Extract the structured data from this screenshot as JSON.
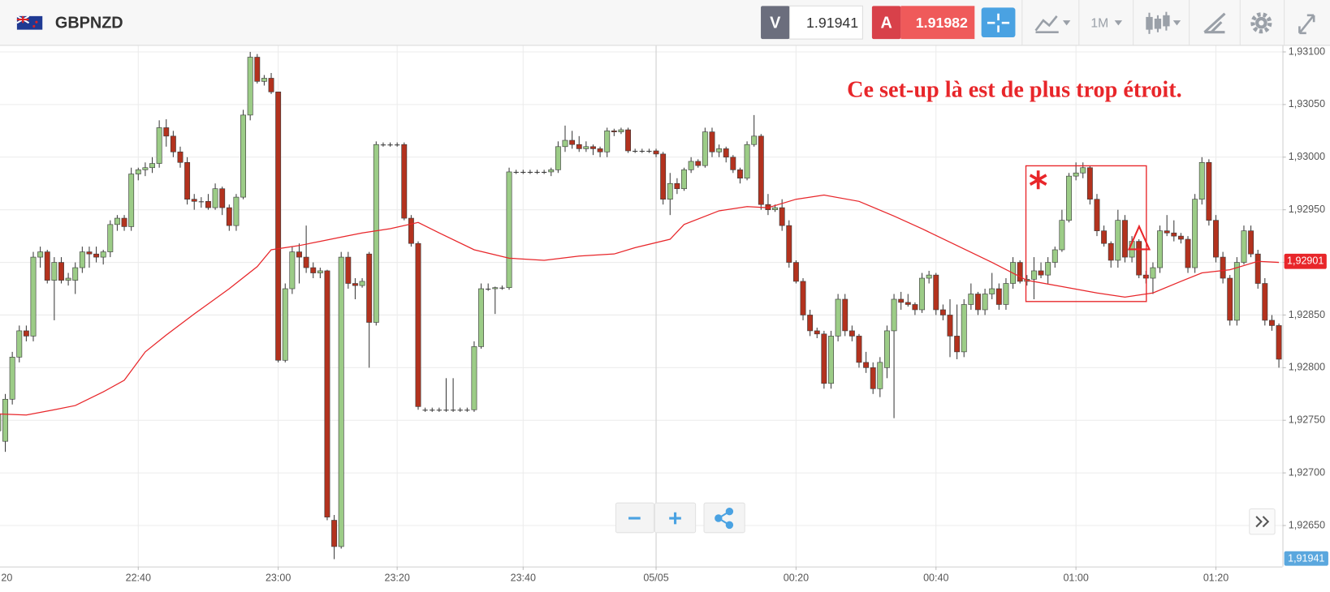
{
  "toolbar": {
    "symbol": "GBPNZD",
    "bid_label": "V",
    "bid": 1.91941,
    "ask_label": "A",
    "ask": 1.91982,
    "timeframe": "1M"
  },
  "chart_data": {
    "type": "candlestick",
    "categories": [
      "20",
      null,
      null,
      null,
      null,
      null,
      null,
      null,
      null,
      null,
      null,
      null,
      null,
      null,
      null,
      null,
      null,
      null,
      null,
      null,
      "22:40",
      null,
      null,
      null,
      null,
      null,
      null,
      null,
      null,
      null,
      null,
      null,
      null,
      null,
      null,
      null,
      null,
      null,
      null,
      null,
      "23:00",
      null,
      null,
      null,
      null,
      null,
      null,
      null,
      null,
      null,
      null,
      null,
      null,
      null,
      null,
      null,
      null,
      "23:20",
      null,
      null,
      null,
      null,
      null,
      null,
      null,
      null,
      null,
      null,
      null,
      null,
      null,
      null,
      null,
      null,
      null,
      "23:40",
      null,
      null,
      null,
      null,
      null,
      null,
      null,
      null,
      null,
      null,
      null,
      null,
      null,
      null,
      null,
      null,
      null,
      null,
      "05/05",
      null,
      null,
      null,
      null,
      null,
      null,
      null,
      null,
      null,
      null,
      null,
      null,
      null,
      null,
      null,
      null,
      null,
      null,
      null,
      "00:20",
      null,
      null,
      null,
      null,
      null,
      null,
      null,
      null,
      null,
      null,
      null,
      null,
      null,
      null,
      null,
      null,
      null,
      null,
      null,
      "00:40",
      null,
      null,
      null,
      null,
      null,
      null,
      null,
      null,
      null,
      null,
      null,
      null,
      null,
      null,
      null,
      null,
      null,
      null,
      null,
      "01:00",
      null,
      null,
      null,
      null,
      null,
      null,
      null,
      null,
      null,
      null,
      null,
      null,
      null,
      null,
      null,
      null,
      null,
      null,
      null,
      "01:20",
      null,
      null,
      null,
      null,
      null,
      null,
      null,
      null,
      null
    ],
    "open": [
      1.9274,
      1.9273,
      1.9277,
      1.9281,
      1.92835,
      1.9283,
      1.92905,
      1.9291,
      1.92883,
      1.929,
      1.92883,
      1.92883,
      1.92895,
      1.9291,
      1.92908,
      1.92905,
      1.9291,
      1.92936,
      1.92942,
      1.92934,
      1.92984,
      1.92988,
      1.9299,
      1.92994,
      1.93028,
      1.9302,
      1.93005,
      1.92995,
      1.9296,
      1.92958,
      1.92958,
      1.92952,
      1.9297,
      1.92952,
      1.92935,
      1.92962,
      1.9304,
      1.93095,
      1.93072,
      1.93075,
      1.93062,
      1.92807,
      1.92875,
      1.9291,
      1.92905,
      1.92895,
      1.9289,
      1.92892,
      1.92655,
      1.9263,
      1.92905,
      1.9288,
      1.92878,
      1.92908,
      1.92843,
      1.93012,
      1.93012,
      1.93012,
      1.93012,
      1.92942,
      1.92918,
      1.9276,
      1.9276,
      1.9276,
      1.9276,
      1.9276,
      1.9276,
      1.9276,
      1.9276,
      1.9282,
      1.92875,
      1.92875,
      1.92876,
      1.92876,
      1.92986,
      1.92986,
      1.92986,
      1.92986,
      1.92986,
      1.92986,
      1.92988,
      1.9301,
      1.93016,
      1.93012,
      1.93008,
      1.9301,
      1.93008,
      1.93005,
      1.93025,
      1.93024,
      1.93026,
      1.93006,
      1.93006,
      1.93006,
      1.93006,
      1.93003,
      1.9296,
      1.92975,
      1.9297,
      1.92988,
      1.92996,
      1.92992,
      1.93024,
      1.93005,
      1.93008,
      1.93,
      1.92988,
      1.9298,
      1.93012,
      1.9302,
      1.92955,
      1.9295,
      1.92952,
      1.92935,
      1.929,
      1.92882,
      1.9285,
      1.92835,
      1.92832,
      1.92785,
      1.9283,
      1.92865,
      1.92835,
      1.9283,
      1.92805,
      1.928,
      1.9278,
      1.928,
      1.92835,
      1.92865,
      1.92862,
      1.9286,
      1.92855,
      1.92885,
      1.92888,
      1.92855,
      1.9285,
      1.9283,
      1.92815,
      1.9286,
      1.9287,
      1.92855,
      1.9287,
      1.92875,
      1.9286,
      1.9288,
      1.929,
      1.92882,
      1.92884,
      1.92892,
      1.92888,
      1.929,
      1.92912,
      1.9294,
      1.92982,
      1.92985,
      1.9299,
      1.9296,
      1.9293,
      1.92918,
      1.92902,
      1.9294,
      1.92905,
      1.9292,
      1.92888,
      1.92885,
      1.92895,
      1.9293,
      1.92928,
      1.92925,
      1.92922,
      1.92895,
      1.9296,
      1.92995,
      1.9294,
      1.92905,
      1.92885,
      1.92845,
      1.929,
      1.9293,
      1.92908,
      1.9288,
      1.92845,
      1.9284
    ],
    "high": [
      1.9276,
      1.92775,
      1.92815,
      1.9284,
      1.9284,
      1.9291,
      1.92915,
      1.92912,
      1.92905,
      1.92905,
      1.9289,
      1.929,
      1.92915,
      1.92915,
      1.92915,
      1.92912,
      1.9294,
      1.92945,
      1.92945,
      1.9299,
      1.9299,
      1.92995,
      1.93,
      1.93035,
      1.93036,
      1.93025,
      1.9301,
      1.93,
      1.92965,
      1.92962,
      1.92965,
      1.92975,
      1.92972,
      1.92955,
      1.92965,
      1.93045,
      1.931,
      1.93098,
      1.93078,
      1.9308,
      1.93062,
      1.9288,
      1.92915,
      1.92918,
      1.92935,
      1.929,
      1.92895,
      1.92893,
      1.9266,
      1.9291,
      1.9291,
      1.92885,
      1.92885,
      1.9291,
      1.93015,
      1.93014,
      1.93014,
      1.93014,
      1.93014,
      1.92945,
      1.9292,
      1.92762,
      1.92762,
      1.92762,
      1.9279,
      1.9279,
      1.92762,
      1.92762,
      1.92825,
      1.9288,
      1.9288,
      1.92877,
      1.92878,
      1.9299,
      1.92988,
      1.92988,
      1.92988,
      1.92988,
      1.92988,
      1.9299,
      1.93015,
      1.9303,
      1.93025,
      1.9302,
      1.93015,
      1.93012,
      1.9301,
      1.93028,
      1.93027,
      1.93028,
      1.93028,
      1.93008,
      1.93008,
      1.93008,
      1.93008,
      1.93005,
      1.92985,
      1.9298,
      1.9299,
      1.93,
      1.92998,
      1.93028,
      1.93028,
      1.93012,
      1.9301,
      1.93002,
      1.9299,
      1.93015,
      1.9304,
      1.93022,
      1.92965,
      1.92955,
      1.9296,
      1.9294,
      1.92902,
      1.92885,
      1.92855,
      1.92838,
      1.92835,
      1.92835,
      1.9287,
      1.9287,
      1.9284,
      1.92832,
      1.92815,
      1.92805,
      1.9281,
      1.9284,
      1.9287,
      1.92872,
      1.9287,
      1.92862,
      1.9289,
      1.92892,
      1.9289,
      1.9286,
      1.92865,
      1.9286,
      1.92865,
      1.9288,
      1.92872,
      1.92875,
      1.9289,
      1.9288,
      1.92885,
      1.92905,
      1.92902,
      1.92888,
      1.92905,
      1.929,
      1.92905,
      1.92915,
      1.9295,
      1.92985,
      1.92995,
      1.92995,
      1.92992,
      1.92965,
      1.92935,
      1.9292,
      1.9295,
      1.92945,
      1.92925,
      1.92922,
      1.92892,
      1.929,
      1.92935,
      1.92945,
      1.9294,
      1.92928,
      1.92925,
      1.92965,
      1.93,
      1.92998,
      1.92945,
      1.9291,
      1.92888,
      1.92905,
      1.92935,
      1.92935,
      1.92912,
      1.92885,
      1.9285,
      1.92842
    ],
    "low": [
      1.9273,
      1.9272,
      1.92765,
      1.92805,
      1.92825,
      1.92825,
      1.92895,
      1.9288,
      1.92845,
      1.9288,
      1.92878,
      1.9287,
      1.9289,
      1.92895,
      1.929,
      1.92898,
      1.92905,
      1.9293,
      1.9293,
      1.9293,
      1.92978,
      1.92982,
      1.92985,
      1.9299,
      1.9301,
      1.93,
      1.9299,
      1.92955,
      1.9295,
      1.92952,
      1.9295,
      1.9295,
      1.92945,
      1.9293,
      1.9293,
      1.9296,
      1.93035,
      1.9307,
      1.93068,
      1.9306,
      1.92805,
      1.92805,
      1.9287,
      1.9288,
      1.9289,
      1.92885,
      1.92885,
      1.92655,
      1.92618,
      1.92628,
      1.92875,
      1.92865,
      1.92876,
      1.928,
      1.9284,
      1.9301,
      1.9301,
      1.9301,
      1.9294,
      1.92915,
      1.9276,
      1.92758,
      1.92758,
      1.92758,
      1.92758,
      1.92758,
      1.92758,
      1.92758,
      1.92758,
      1.92818,
      1.92873,
      1.92851,
      1.92874,
      1.92874,
      1.92984,
      1.92984,
      1.92984,
      1.92984,
      1.92984,
      1.92982,
      1.92985,
      1.93005,
      1.93008,
      1.93005,
      1.93005,
      1.93002,
      1.93,
      1.93,
      1.9302,
      1.93022,
      1.93004,
      1.93004,
      1.93004,
      1.93004,
      1.93,
      1.92955,
      1.92945,
      1.92965,
      1.92968,
      1.92985,
      1.9299,
      1.9299,
      1.93,
      1.93,
      1.92995,
      1.92985,
      1.92975,
      1.92978,
      1.9301,
      1.9295,
      1.92945,
      1.92948,
      1.9293,
      1.92895,
      1.9288,
      1.92845,
      1.9283,
      1.92828,
      1.9278,
      1.9278,
      1.92825,
      1.9283,
      1.92825,
      1.928,
      1.92795,
      1.92775,
      1.92772,
      1.9279,
      1.92752,
      1.92855,
      1.92858,
      1.9285,
      1.92852,
      1.9288,
      1.9285,
      1.92845,
      1.9281,
      1.92808,
      1.9281,
      1.92855,
      1.9285,
      1.9285,
      1.92865,
      1.92855,
      1.92855,
      1.92875,
      1.9288,
      1.92878,
      1.92865,
      1.92885,
      1.9288,
      1.92895,
      1.9291,
      1.92938,
      1.92978,
      1.9298,
      1.92955,
      1.92925,
      1.92915,
      1.92895,
      1.92895,
      1.929,
      1.929,
      1.92885,
      1.9288,
      1.9287,
      1.9289,
      1.92925,
      1.9292,
      1.92918,
      1.9289,
      1.9289,
      1.92955,
      1.92935,
      1.929,
      1.9288,
      1.9284,
      1.9284,
      1.92898,
      1.92905,
      1.92875,
      1.9284,
      1.92835,
      1.928
    ],
    "close": [
      1.92755,
      1.9277,
      1.9281,
      1.92835,
      1.9283,
      1.92905,
      1.9291,
      1.92883,
      1.929,
      1.92883,
      1.92885,
      1.92895,
      1.9291,
      1.92908,
      1.92905,
      1.9291,
      1.92936,
      1.92942,
      1.92934,
      1.92984,
      1.92988,
      1.9299,
      1.92994,
      1.93028,
      1.9302,
      1.93005,
      1.92995,
      1.9296,
      1.92958,
      1.92958,
      1.92952,
      1.9297,
      1.92952,
      1.92935,
      1.92962,
      1.9304,
      1.93095,
      1.93072,
      1.93075,
      1.93062,
      1.92807,
      1.92875,
      1.9291,
      1.92905,
      1.92895,
      1.9289,
      1.92892,
      1.92658,
      1.9263,
      1.92905,
      1.9288,
      1.92878,
      1.92882,
      1.92843,
      1.93012,
      1.93012,
      1.93012,
      1.93012,
      1.92942,
      1.92918,
      1.92763,
      1.9276,
      1.9276,
      1.9276,
      1.9276,
      1.9276,
      1.9276,
      1.9276,
      1.9282,
      1.92875,
      1.92875,
      1.92876,
      1.92876,
      1.92986,
      1.92986,
      1.92986,
      1.92986,
      1.92986,
      1.92986,
      1.92988,
      1.9301,
      1.93016,
      1.93012,
      1.93008,
      1.9301,
      1.93008,
      1.93005,
      1.93025,
      1.93024,
      1.93026,
      1.93006,
      1.93006,
      1.93006,
      1.93006,
      1.93003,
      1.9296,
      1.92975,
      1.9297,
      1.92988,
      1.92996,
      1.92992,
      1.93024,
      1.93005,
      1.93008,
      1.93,
      1.92988,
      1.9298,
      1.93012,
      1.9302,
      1.92955,
      1.9295,
      1.92952,
      1.92935,
      1.929,
      1.92882,
      1.9285,
      1.92835,
      1.92832,
      1.92785,
      1.9283,
      1.92865,
      1.92835,
      1.9283,
      1.92805,
      1.928,
      1.9278,
      1.92805,
      1.92835,
      1.92865,
      1.92862,
      1.9286,
      1.92855,
      1.92885,
      1.92888,
      1.92855,
      1.9285,
      1.9283,
      1.92815,
      1.9286,
      1.9287,
      1.92855,
      1.9287,
      1.92875,
      1.9286,
      1.9288,
      1.929,
      1.92882,
      1.92884,
      1.92892,
      1.92888,
      1.929,
      1.92912,
      1.9294,
      1.92982,
      1.92985,
      1.9299,
      1.9296,
      1.9293,
      1.92918,
      1.92902,
      1.9294,
      1.92905,
      1.9292,
      1.92888,
      1.92885,
      1.92895,
      1.9293,
      1.92928,
      1.92925,
      1.92922,
      1.92895,
      1.9296,
      1.92995,
      1.9294,
      1.92905,
      1.92885,
      1.92845,
      1.929,
      1.9293,
      1.92908,
      1.9288,
      1.92845,
      1.9284,
      1.92808
    ],
    "up_color": "#9ccc87",
    "down_color": "#b3321e",
    "overlay": {
      "color": "#e8262a",
      "x": [
        0,
        4,
        8,
        11,
        15,
        18,
        21,
        24,
        28,
        33,
        37,
        39,
        43,
        46,
        49,
        52,
        56,
        60,
        63,
        68,
        73,
        78,
        83,
        88,
        91,
        96,
        98,
        103,
        107,
        110,
        114,
        118,
        123,
        128,
        132,
        137,
        142,
        147,
        152,
        157,
        161,
        165,
        169,
        172,
        176,
        180,
        183
      ],
      "values": [
        1.92756,
        1.92755,
        1.9276,
        1.92764,
        1.92777,
        1.92788,
        1.92815,
        1.92831,
        1.92851,
        1.92875,
        1.92896,
        1.92912,
        1.92916,
        1.9292,
        1.92924,
        1.92928,
        1.92932,
        1.92938,
        1.92928,
        1.92912,
        1.92904,
        1.92902,
        1.92906,
        1.92908,
        1.92914,
        1.92922,
        1.92936,
        1.92949,
        1.92953,
        1.92952,
        1.9296,
        1.92964,
        1.92958,
        1.92944,
        1.92932,
        1.92916,
        1.929,
        1.92883,
        1.92877,
        1.92871,
        1.92867,
        1.92871,
        1.92882,
        1.9289,
        1.92893,
        1.92901,
        1.929
      ]
    },
    "ylim": [
      1.92611,
      1.93105
    ],
    "yticks": [
      {
        "value": 1.931,
        "label": "1,93100"
      },
      {
        "value": 1.9305,
        "label": "1,93050"
      },
      {
        "value": 1.93,
        "label": "1,93000"
      },
      {
        "value": 1.9295,
        "label": "1,92950"
      },
      {
        "value": 1.929,
        "label": "1,92900"
      },
      {
        "value": 1.9285,
        "label": "1,92850"
      },
      {
        "value": 1.928,
        "label": "1,92800"
      },
      {
        "value": 1.9275,
        "label": "1,92750"
      },
      {
        "value": 1.927,
        "label": "1,92700"
      },
      {
        "value": 1.9265,
        "label": "1,92650"
      }
    ],
    "grid": true,
    "last_price": {
      "value": 1.92901,
      "label": "1,92901",
      "color": "#e8262a"
    },
    "bid_tag": "1,91941",
    "annotation": "Ce set-up là est de plus trop étroit."
  }
}
